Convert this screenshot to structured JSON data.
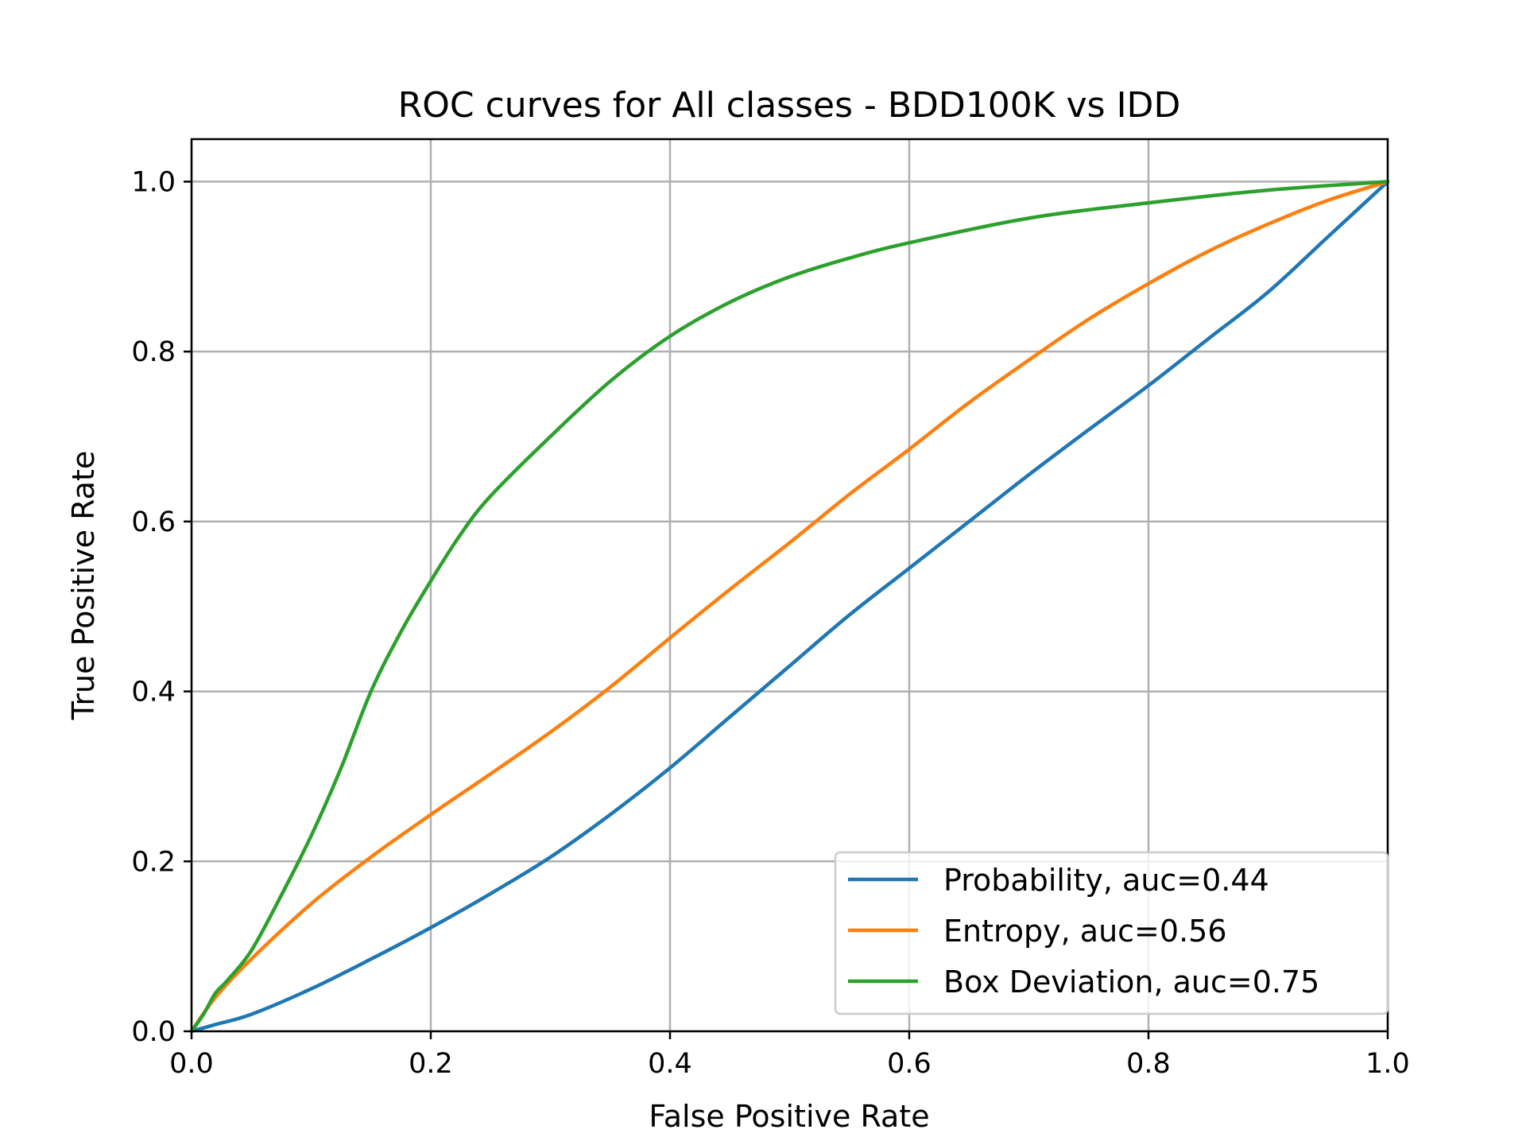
{
  "chart_data": {
    "type": "line",
    "title": "ROC curves for All classes - BDD100K vs IDD",
    "xlabel": "False Positive Rate",
    "ylabel": "True Positive Rate",
    "xlim": [
      0.0,
      1.0
    ],
    "ylim": [
      0.0,
      1.05
    ],
    "x_ticks": [
      0.0,
      0.2,
      0.4,
      0.6,
      0.8,
      1.0
    ],
    "y_ticks": [
      0.0,
      0.2,
      0.4,
      0.6,
      0.8,
      1.0
    ],
    "x_tick_labels": [
      "0.0",
      "0.2",
      "0.4",
      "0.6",
      "0.8",
      "1.0"
    ],
    "y_tick_labels": [
      "0.0",
      "0.2",
      "0.4",
      "0.6",
      "0.8",
      "1.0"
    ],
    "grid": true,
    "legend_position": "lower-right",
    "series": [
      {
        "name": "Probability, auc=0.44",
        "color": "#1f77b4",
        "x": [
          0.0,
          0.02,
          0.05,
          0.1,
          0.15,
          0.2,
          0.25,
          0.3,
          0.35,
          0.4,
          0.45,
          0.5,
          0.55,
          0.6,
          0.65,
          0.7,
          0.75,
          0.8,
          0.85,
          0.9,
          0.95,
          1.0
        ],
        "y": [
          0.0,
          0.008,
          0.02,
          0.05,
          0.085,
          0.122,
          0.162,
          0.205,
          0.255,
          0.31,
          0.37,
          0.43,
          0.49,
          0.545,
          0.6,
          0.655,
          0.708,
          0.76,
          0.815,
          0.87,
          0.935,
          1.0
        ]
      },
      {
        "name": "Entropy, auc=0.56",
        "color": "#ff7f0e",
        "x": [
          0.0,
          0.02,
          0.05,
          0.1,
          0.15,
          0.2,
          0.25,
          0.3,
          0.35,
          0.4,
          0.45,
          0.5,
          0.55,
          0.6,
          0.65,
          0.7,
          0.75,
          0.8,
          0.85,
          0.9,
          0.95,
          1.0
        ],
        "y": [
          0.0,
          0.04,
          0.085,
          0.15,
          0.205,
          0.255,
          0.303,
          0.352,
          0.405,
          0.463,
          0.52,
          0.575,
          0.632,
          0.685,
          0.74,
          0.79,
          0.838,
          0.88,
          0.918,
          0.95,
          0.978,
          1.0
        ]
      },
      {
        "name": "Box Deviation, auc=0.75",
        "color": "#2ca02c",
        "x": [
          0.0,
          0.01,
          0.02,
          0.03,
          0.05,
          0.075,
          0.1,
          0.125,
          0.15,
          0.175,
          0.2,
          0.225,
          0.25,
          0.3,
          0.35,
          0.4,
          0.45,
          0.5,
          0.55,
          0.6,
          0.7,
          0.8,
          0.9,
          1.0
        ],
        "y": [
          0.0,
          0.02,
          0.045,
          0.06,
          0.095,
          0.16,
          0.23,
          0.31,
          0.4,
          0.47,
          0.53,
          0.585,
          0.63,
          0.7,
          0.765,
          0.818,
          0.858,
          0.888,
          0.91,
          0.928,
          0.957,
          0.975,
          0.99,
          1.0
        ]
      }
    ]
  }
}
